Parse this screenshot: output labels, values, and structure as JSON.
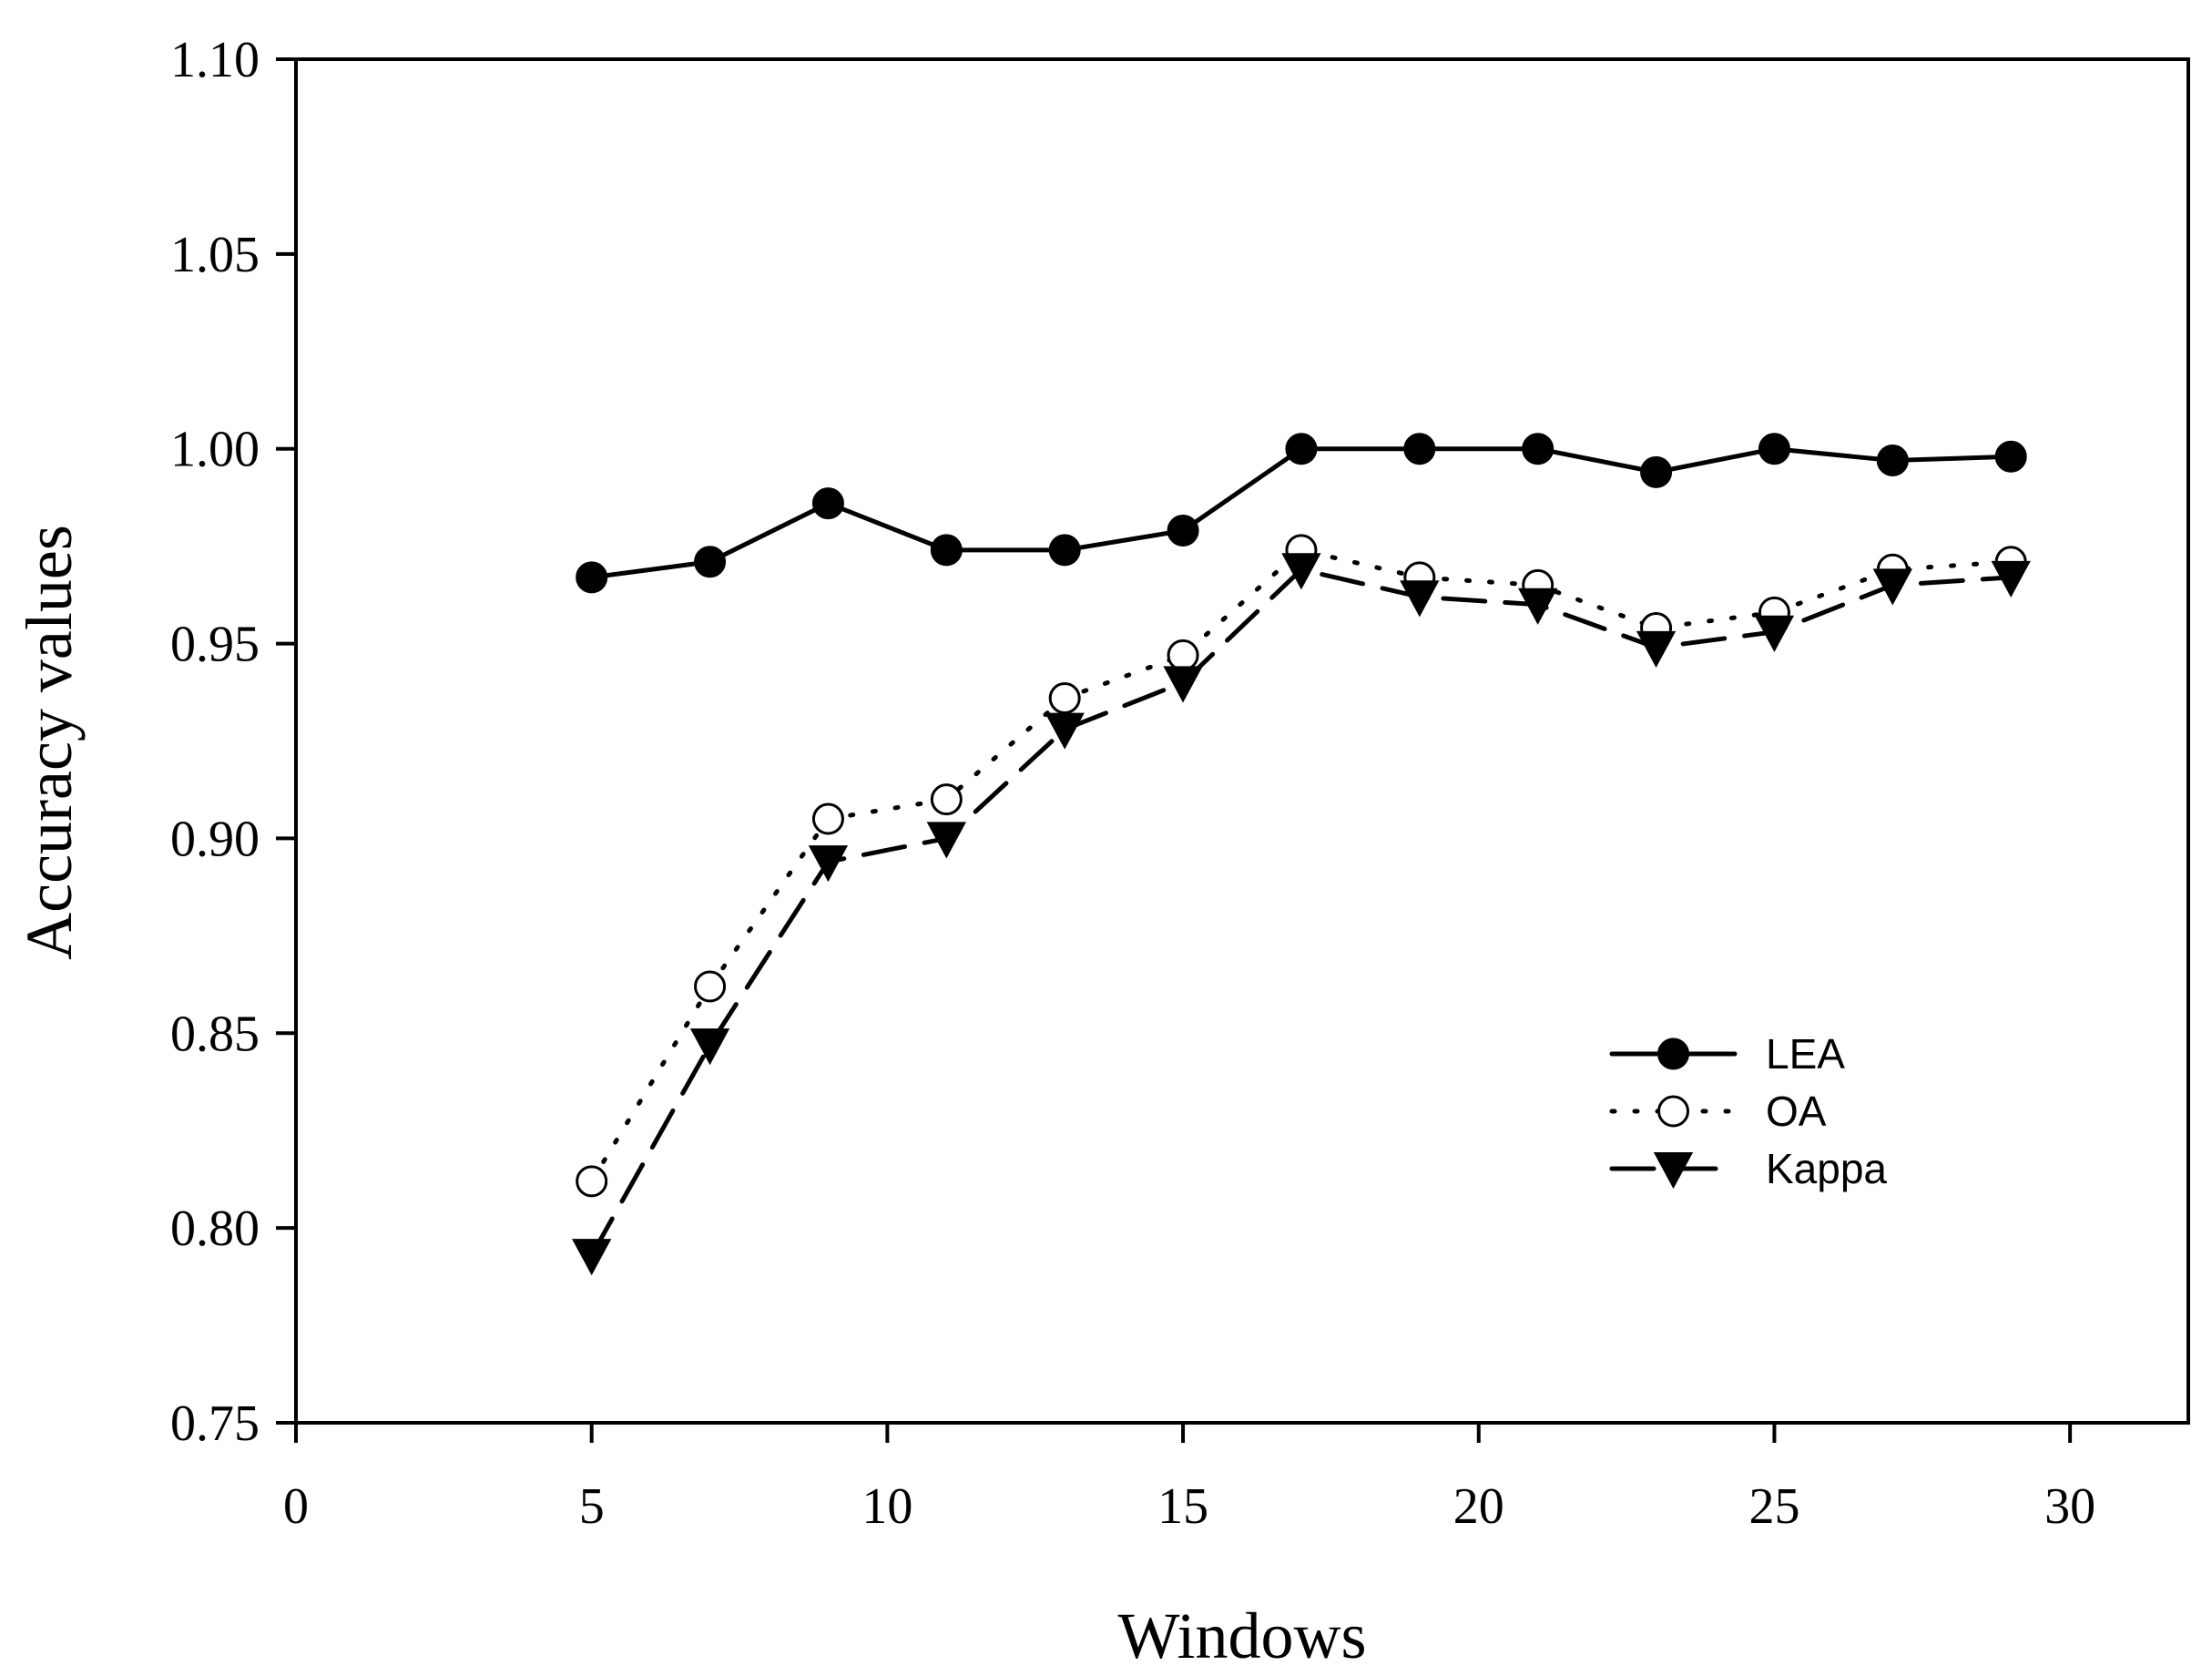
{
  "chart_data": {
    "type": "line",
    "title": "",
    "xlabel": "Windows",
    "ylabel": "Accuracy values",
    "xlim": [
      0,
      32
    ],
    "ylim": [
      0.75,
      1.1
    ],
    "xticks": [
      0,
      5,
      10,
      15,
      20,
      25,
      30
    ],
    "yticks": [
      0.75,
      0.8,
      0.85,
      0.9,
      0.95,
      1.0,
      1.05,
      1.1
    ],
    "xtick_labels": [
      "0",
      "5",
      "10",
      "15",
      "20",
      "25",
      "30"
    ],
    "ytick_labels": [
      "0.75",
      "0.80",
      "0.85",
      "0.90",
      "0.95",
      "1.00",
      "1.05",
      "1.10"
    ],
    "grid": false,
    "legend_position": "lower-right",
    "x": [
      5,
      7,
      9,
      11,
      13,
      15,
      17,
      19,
      21,
      23,
      25,
      27,
      29
    ],
    "series": [
      {
        "name": "LEA",
        "line_style": "solid",
        "marker": "filled-circle",
        "values": [
          0.967,
          0.971,
          0.986,
          0.974,
          0.974,
          0.979,
          1.0,
          1.0,
          1.0,
          0.994,
          1.0,
          0.997,
          0.998
        ]
      },
      {
        "name": "OA",
        "line_style": "dotted",
        "marker": "open-circle",
        "values": [
          0.812,
          0.862,
          0.905,
          0.91,
          0.936,
          0.947,
          0.974,
          0.967,
          0.965,
          0.954,
          0.958,
          0.969,
          0.971
        ]
      },
      {
        "name": "Kappa",
        "line_style": "dashed",
        "marker": "filled-triangle-down",
        "values": [
          0.793,
          0.847,
          0.894,
          0.9,
          0.928,
          0.94,
          0.969,
          0.962,
          0.96,
          0.949,
          0.953,
          0.965,
          0.967
        ]
      }
    ]
  }
}
